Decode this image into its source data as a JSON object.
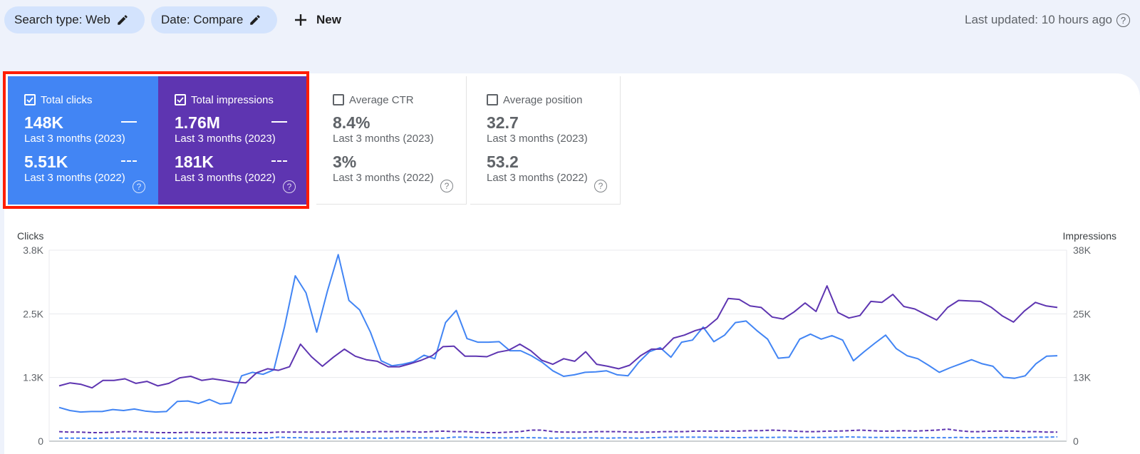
{
  "toolbar": {
    "search_type": "Search type: Web",
    "date": "Date: Compare",
    "new_label": "New",
    "last_updated": "Last updated: 10 hours ago"
  },
  "metrics": [
    {
      "title": "Total clicks",
      "checked": true,
      "color": "#4285f4",
      "value_current": "148K",
      "period_current": "Last 3 months (2023)",
      "value_previous": "5.51K",
      "period_previous": "Last 3 months (2022)"
    },
    {
      "title": "Total impressions",
      "checked": true,
      "color": "#5e35b1",
      "value_current": "1.76M",
      "period_current": "Last 3 months (2023)",
      "value_previous": "181K",
      "period_previous": "Last 3 months (2022)"
    },
    {
      "title": "Average CTR",
      "checked": false,
      "value_current": "8.4%",
      "period_current": "Last 3 months (2023)",
      "value_previous": "3%",
      "period_previous": "Last 3 months (2022)"
    },
    {
      "title": "Average position",
      "checked": false,
      "value_current": "32.7",
      "period_current": "Last 3 months (2023)",
      "value_previous": "53.2",
      "period_previous": "Last 3 months (2022)"
    }
  ],
  "chart_data": {
    "type": "line",
    "y_left_label": "Clicks",
    "y_right_label": "Impressions",
    "y_left_ticks": [
      "0",
      "1.3K",
      "2.5K",
      "3.8K"
    ],
    "y_right_ticks": [
      "0",
      "13K",
      "25K",
      "38K"
    ],
    "y_left_lim": [
      0,
      3800
    ],
    "y_right_lim": [
      0,
      38000
    ],
    "colors": {
      "clicks": "#4285f4",
      "impressions": "#5e35b1"
    },
    "series": [
      {
        "axis": "left",
        "style": "solid",
        "color": "#4285f4",
        "values": [
          670,
          610,
          580,
          590,
          590,
          630,
          610,
          640,
          600,
          580,
          590,
          790,
          800,
          750,
          830,
          740,
          760,
          1300,
          1370,
          1330,
          1420,
          2280,
          3290,
          2950,
          2170,
          2990,
          3710,
          2800,
          2610,
          2170,
          1600,
          1500,
          1530,
          1580,
          1710,
          1640,
          2360,
          2600,
          2040,
          1970,
          1970,
          1980,
          1800,
          1800,
          1700,
          1570,
          1400,
          1290,
          1320,
          1370,
          1380,
          1400,
          1320,
          1300,
          1570,
          1780,
          1860,
          1670,
          1970,
          2010,
          2270,
          1980,
          2110,
          2360,
          2390,
          2200,
          2030,
          1650,
          1670,
          2030,
          2130,
          2030,
          2100,
          2010,
          1600,
          1780,
          1950,
          2110,
          1840,
          1700,
          1640,
          1510,
          1370,
          1460,
          1540,
          1620,
          1540,
          1490,
          1270,
          1250,
          1300,
          1540,
          1690,
          1700
        ]
      },
      {
        "axis": "right",
        "style": "solid",
        "color": "#5e35b1",
        "values": [
          11000,
          11600,
          11300,
          10600,
          12100,
          12100,
          12400,
          11500,
          11900,
          11000,
          11500,
          12600,
          12900,
          12100,
          12400,
          12100,
          11700,
          11600,
          13600,
          14400,
          14100,
          14800,
          19300,
          16800,
          14900,
          16700,
          18300,
          16900,
          16200,
          15900,
          14800,
          14800,
          15400,
          16100,
          17000,
          18800,
          18900,
          16900,
          16900,
          16800,
          17700,
          18100,
          19300,
          18000,
          16100,
          15300,
          16400,
          15900,
          17800,
          15300,
          14900,
          14400,
          15100,
          17000,
          18300,
          18300,
          20500,
          21100,
          22000,
          22600,
          24400,
          28400,
          28200,
          26900,
          26600,
          24700,
          24300,
          25700,
          27500,
          25800,
          30900,
          25600,
          24500,
          25000,
          27800,
          27600,
          29200,
          26800,
          26300,
          25200,
          24100,
          26600,
          28000,
          27900,
          27800,
          26600,
          24900,
          23700,
          25900,
          27600,
          26900,
          26600
        ]
      },
      {
        "axis": "left",
        "style": "dashed",
        "color": "#4285f4",
        "values": [
          60,
          60,
          60,
          55,
          60,
          60,
          60,
          60,
          60,
          60,
          55,
          60,
          60,
          60,
          60,
          60,
          60,
          60,
          55,
          60,
          80,
          70,
          70,
          60,
          60,
          60,
          60,
          60,
          65,
          60,
          60,
          65,
          65,
          65,
          65,
          60,
          80,
          80,
          70,
          70,
          65,
          65,
          70,
          70,
          65,
          60,
          65,
          60,
          65,
          65,
          60,
          65,
          65,
          60,
          70,
          75,
          80,
          80,
          80,
          80,
          75,
          75,
          70,
          75,
          75,
          75,
          80,
          75,
          75,
          75,
          75,
          80,
          85,
          80,
          75,
          75,
          75,
          70,
          75,
          70,
          70,
          70,
          75,
          70,
          70,
          70,
          75,
          70,
          70,
          80,
          80,
          85
        ]
      },
      {
        "axis": "right",
        "style": "dashed",
        "color": "#5e35b1",
        "values": [
          1900,
          1800,
          1800,
          1700,
          1700,
          1800,
          1900,
          1900,
          1800,
          1700,
          1700,
          1700,
          1800,
          1700,
          1700,
          1800,
          1700,
          1700,
          1700,
          1700,
          1800,
          1800,
          1800,
          1800,
          1800,
          1800,
          1900,
          1900,
          1800,
          1900,
          1900,
          1900,
          1900,
          1800,
          1900,
          2000,
          1900,
          1900,
          1800,
          1700,
          1700,
          1800,
          1900,
          2200,
          2200,
          1900,
          1800,
          1800,
          1800,
          1900,
          1900,
          1900,
          1800,
          1800,
          1800,
          1900,
          1900,
          1900,
          2000,
          2000,
          2000,
          2000,
          2000,
          2100,
          2100,
          2200,
          2100,
          2000,
          1900,
          1900,
          2000,
          2000,
          2100,
          2200,
          2100,
          2000,
          2000,
          2100,
          2000,
          2100,
          2200,
          2400,
          2100,
          1900,
          1900,
          2000,
          2000,
          2000,
          1900,
          1900,
          1800,
          1800
        ]
      }
    ]
  }
}
